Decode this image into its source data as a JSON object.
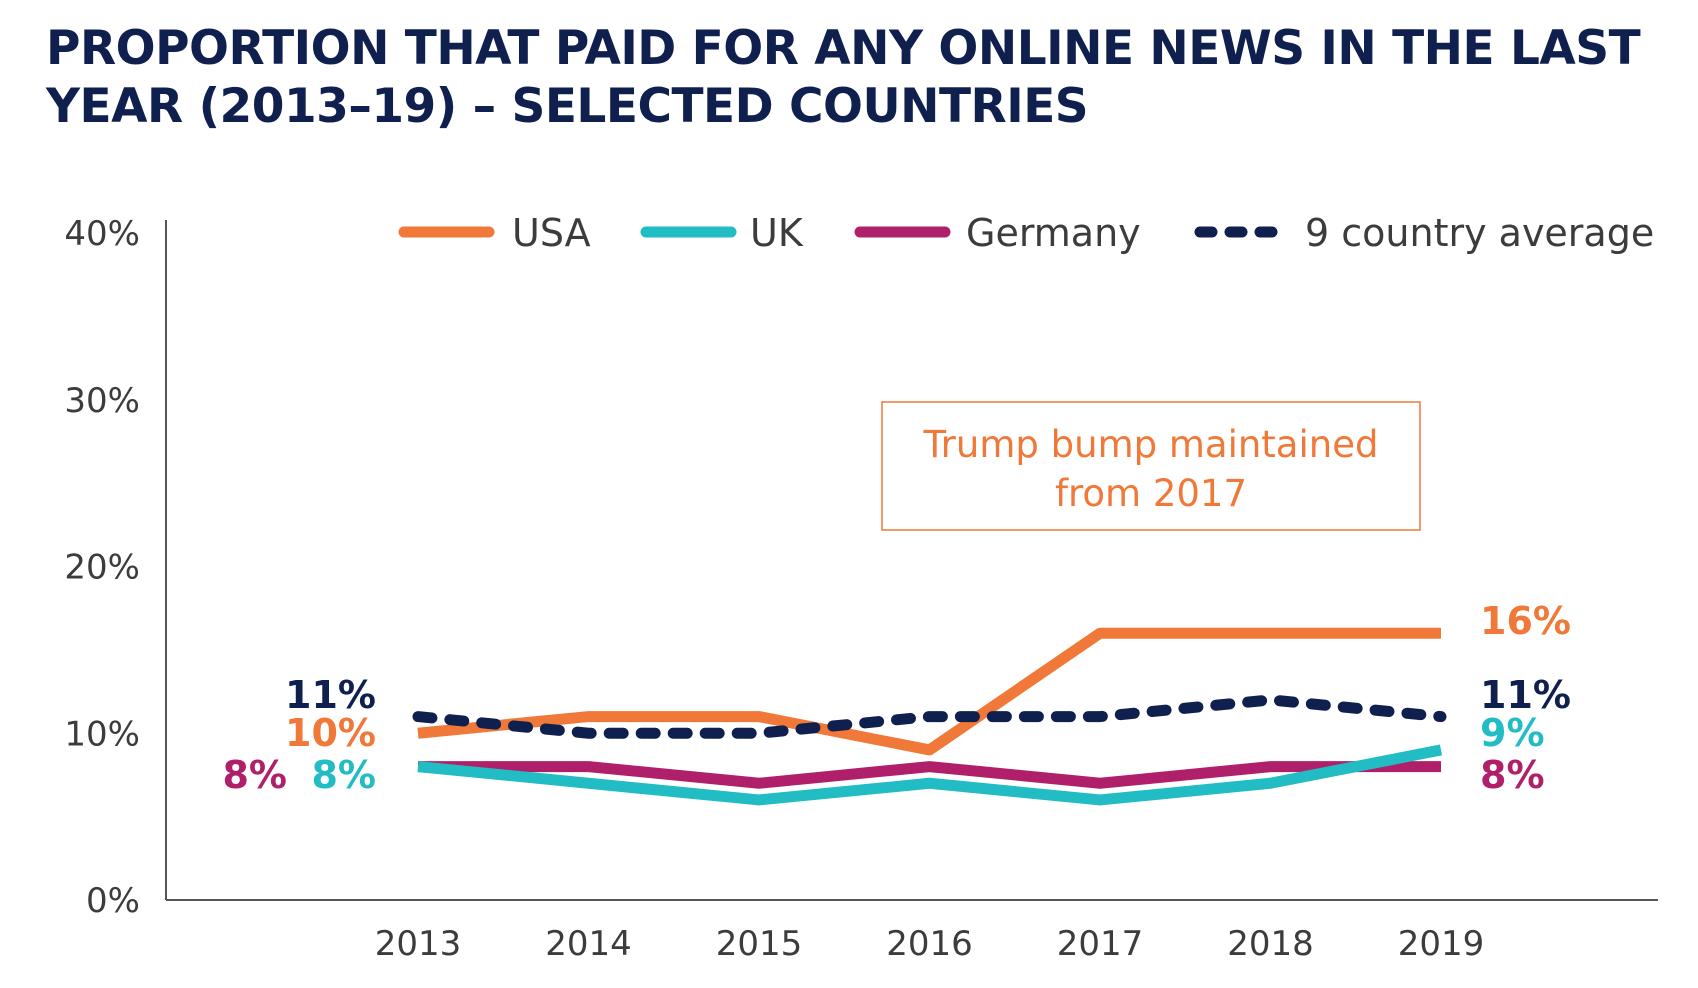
{
  "chart_data": {
    "type": "line",
    "title": "PROPORTION THAT PAID FOR ANY ONLINE NEWS IN THE LAST YEAR (2013–19) – SELECTED COUNTRIES",
    "x": [
      "2013",
      "2014",
      "2015",
      "2016",
      "2017",
      "2018",
      "2019"
    ],
    "ylim": [
      0,
      40
    ],
    "yticks": [
      "0%",
      "10%",
      "20%",
      "30%",
      "40%"
    ],
    "grid": false,
    "legend_position": "top",
    "series": [
      {
        "name": "USA",
        "color": "#f07838",
        "style": "solid",
        "values": [
          10,
          11,
          11,
          9,
          16,
          16,
          16
        ],
        "start_label": "10%",
        "end_label": "16%"
      },
      {
        "name": "UK",
        "color": "#22bcc4",
        "style": "solid",
        "values": [
          8,
          7,
          6,
          7,
          6,
          7,
          9
        ],
        "start_label": "8%",
        "end_label": "9%"
      },
      {
        "name": "Germany",
        "color": "#b0206a",
        "style": "solid",
        "values": [
          8,
          8,
          7,
          8,
          7,
          8,
          8
        ],
        "start_label": "8%",
        "end_label": "8%"
      },
      {
        "name": "9 country average",
        "color": "#0f1f4e",
        "style": "dashed",
        "values": [
          11,
          10,
          10,
          11,
          11,
          12,
          11
        ],
        "start_label": "11%",
        "end_label": "11%"
      }
    ],
    "annotation": {
      "lines": [
        "Trump bump maintained",
        "from 2017"
      ],
      "color": "#f07838"
    }
  }
}
